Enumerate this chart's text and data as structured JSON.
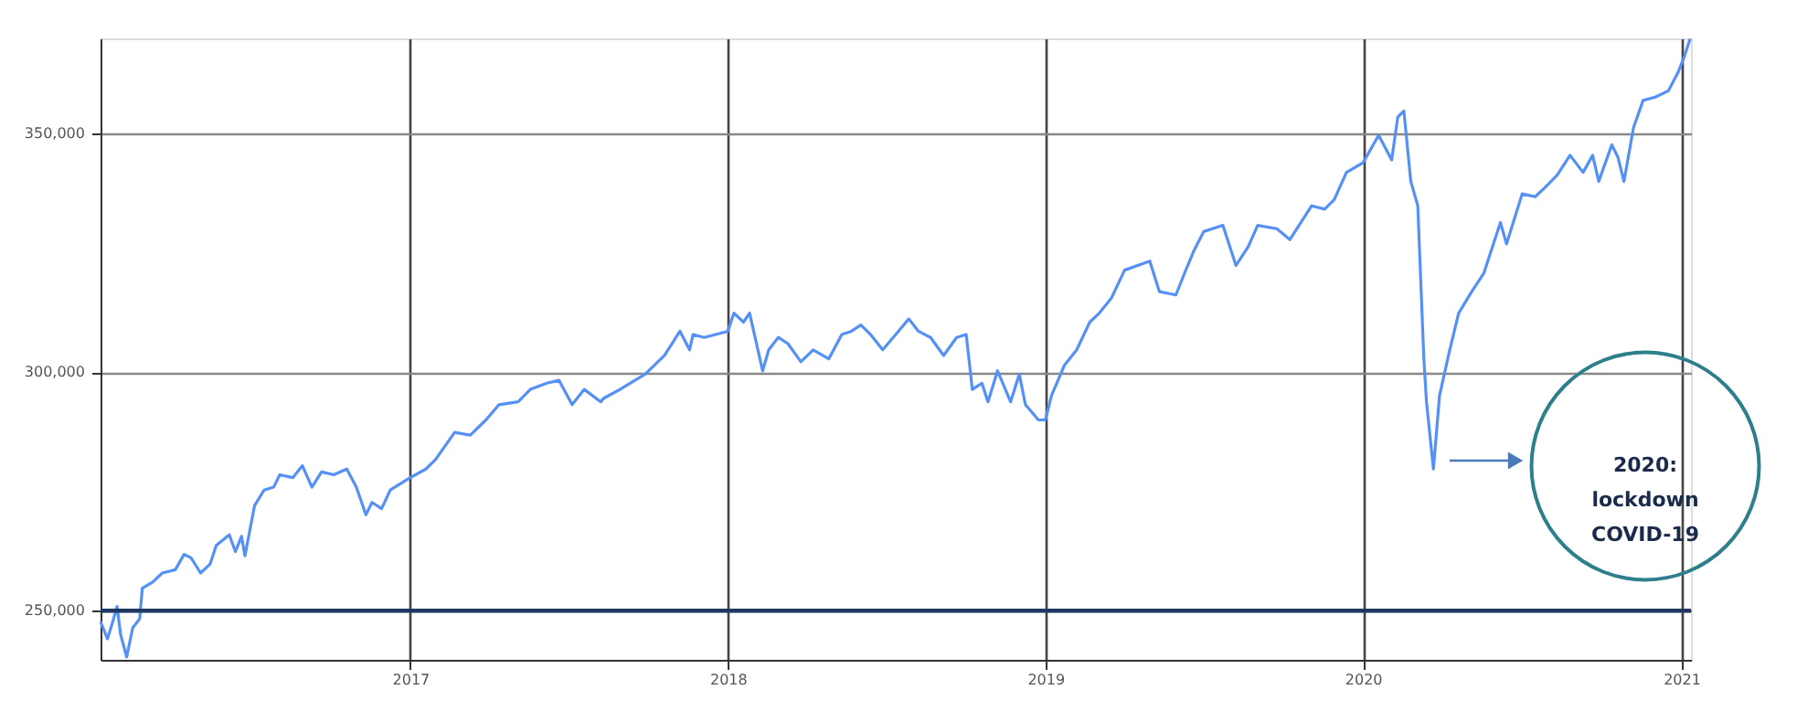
{
  "chart_data": {
    "type": "line",
    "x": [
      "2016-01-11",
      "2016-01-19",
      "2016-01-26",
      "2016-01-30",
      "2016-02-03",
      "2016-02-10",
      "2016-02-17",
      "2016-02-25",
      "2016-02-28",
      "2016-03-11",
      "2016-03-22",
      "2016-04-06",
      "2016-04-16",
      "2016-04-24",
      "2016-05-05",
      "2016-05-16",
      "2016-05-23",
      "2016-06-07",
      "2016-06-14",
      "2016-06-21",
      "2016-06-25",
      "2016-07-02",
      "2016-07-06",
      "2016-07-17",
      "2016-07-28",
      "2016-08-04",
      "2016-08-19",
      "2016-08-30",
      "2016-09-10",
      "2016-09-21",
      "2016-10-05",
      "2016-10-20",
      "2016-10-31",
      "2016-11-11",
      "2016-11-18",
      "2016-11-29",
      "2016-12-09",
      "2017-01-01",
      "2017-01-19",
      "2017-01-30",
      "2017-02-21",
      "2017-03-11",
      "2017-03-29",
      "2017-04-13",
      "2017-05-05",
      "2017-05-19",
      "2017-06-07",
      "2017-06-21",
      "2017-07-06",
      "2017-07-20",
      "2017-08-08",
      "2017-08-11",
      "2017-08-30",
      "2017-09-28",
      "2017-10-20",
      "2017-11-07",
      "2017-11-18",
      "2017-11-22",
      "2017-12-05",
      "2018-01-01",
      "2018-01-08",
      "2018-01-19",
      "2018-01-26",
      "2018-02-10",
      "2018-02-17",
      "2018-02-28",
      "2018-03-11",
      "2018-03-26",
      "2018-04-09",
      "2018-04-27",
      "2018-05-12",
      "2018-05-23",
      "2018-06-03",
      "2018-06-14",
      "2018-06-28",
      "2018-07-13",
      "2018-07-28",
      "2018-08-08",
      "2018-08-22",
      "2018-09-06",
      "2018-09-21",
      "2018-10-02",
      "2018-10-09",
      "2018-10-20",
      "2018-10-27",
      "2018-11-07",
      "2018-11-22",
      "2018-12-02",
      "2018-12-09",
      "2018-12-24",
      "2019-01-01",
      "2019-01-08",
      "2019-01-23",
      "2019-02-06",
      "2019-02-21",
      "2019-03-04",
      "2019-03-18",
      "2019-04-02",
      "2019-05-01",
      "2019-05-12",
      "2019-05-31",
      "2019-06-10",
      "2019-06-21",
      "2019-07-02",
      "2019-07-24",
      "2019-08-08",
      "2019-08-22",
      "2019-09-02",
      "2019-09-24",
      "2019-10-09",
      "2019-11-03",
      "2019-11-18",
      "2019-11-29",
      "2019-12-13",
      "2020-01-01",
      "2020-01-19",
      "2020-02-03",
      "2020-02-10",
      "2020-02-17",
      "2020-02-25",
      "2020-03-04",
      "2020-03-11",
      "2020-03-14",
      "2020-03-22",
      "2020-03-29",
      "2020-04-09",
      "2020-04-20",
      "2020-05-05",
      "2020-05-19",
      "2020-06-07",
      "2020-06-14",
      "2020-07-02",
      "2020-07-17",
      "2020-07-28",
      "2020-08-11",
      "2020-08-26",
      "2020-09-10",
      "2020-09-21",
      "2020-09-28",
      "2020-10-13",
      "2020-10-20",
      "2020-10-27",
      "2020-11-07",
      "2020-11-18",
      "2020-12-02",
      "2020-12-17",
      "2020-12-28",
      "2021-01-04",
      "2021-01-11"
    ],
    "values": [
      247700,
      244100,
      248300,
      250900,
      245100,
      240300,
      246400,
      248300,
      254700,
      256000,
      257900,
      258600,
      261800,
      261100,
      257900,
      259800,
      263700,
      265900,
      262400,
      265600,
      261500,
      268200,
      272000,
      275300,
      275900,
      278500,
      277900,
      280400,
      275900,
      279100,
      278500,
      279700,
      275900,
      270100,
      272700,
      271400,
      275300,
      277900,
      279700,
      281700,
      287400,
      286800,
      290000,
      293200,
      293800,
      296400,
      297700,
      298300,
      293200,
      296400,
      293800,
      294500,
      296400,
      299600,
      303500,
      308600,
      304700,
      307900,
      307300,
      308600,
      312400,
      310500,
      312400,
      300300,
      304700,
      307300,
      306000,
      302200,
      304700,
      302800,
      307900,
      308600,
      309900,
      307900,
      304700,
      307900,
      311200,
      308600,
      307300,
      303500,
      307300,
      307900,
      296400,
      297700,
      293800,
      300300,
      293800,
      299600,
      293200,
      290000,
      290000,
      295100,
      301500,
      304700,
      310500,
      312400,
      315600,
      321400,
      323300,
      316900,
      316200,
      320800,
      325600,
      329500,
      330800,
      322400,
      326300,
      330800,
      330100,
      327800,
      334900,
      334200,
      336200,
      341900,
      343900,
      349700,
      344500,
      353500,
      354800,
      340000,
      334900,
      302800,
      293800,
      279700,
      295100,
      304100,
      312400,
      316900,
      320800,
      331400,
      326900,
      337400,
      336800,
      338700,
      341300,
      345500,
      341900,
      345500,
      340000,
      347700,
      345100,
      340000,
      351300,
      357000,
      357700,
      359000,
      362800,
      366000,
      369900
    ],
    "color": "#5591f5",
    "xlim": [
      "2016-01-11",
      "2021-01-12"
    ],
    "xticks": [
      "2017",
      "2018",
      "2019",
      "2020",
      "2021"
    ],
    "ylim": [
      239700,
      370000
    ],
    "yticks": [
      {
        "value": 250000,
        "label": "250,000"
      },
      {
        "value": 300000,
        "label": "300,000"
      },
      {
        "value": 350000,
        "label": "350,000"
      }
    ],
    "grid": true,
    "ref_lines": [
      {
        "axis": "y",
        "value": 250000,
        "color": "#1f3864"
      }
    ],
    "annotations": [
      "2020: lockdown COVID-19"
    ]
  }
}
